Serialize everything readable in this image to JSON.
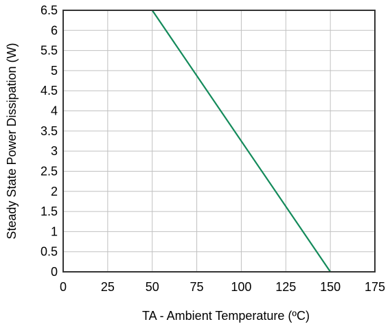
{
  "chart_data": {
    "type": "line",
    "title": "",
    "xlabel": "TA - Ambient Temperature (ºC)",
    "ylabel": "Steady State Power Dissipation (W)",
    "xlim": [
      0,
      175
    ],
    "ylim": [
      0,
      6.5
    ],
    "x_ticks": [
      "0",
      "25",
      "50",
      "75",
      "100",
      "125",
      "150",
      "175"
    ],
    "y_ticks": [
      "0",
      "0.5",
      "1",
      "1.5",
      "2",
      "2.5",
      "3",
      "3.5",
      "4",
      "4.5",
      "5",
      "5.5",
      "6",
      "6.5"
    ],
    "grid": true,
    "series": [
      {
        "color": "#138a5a",
        "points": [
          {
            "x": 50,
            "y": 6.5
          },
          {
            "x": 150,
            "y": 0
          }
        ]
      }
    ]
  },
  "colors": {
    "line": "#138a5a",
    "grid": "#c0c0c0",
    "axis": "#333333"
  }
}
